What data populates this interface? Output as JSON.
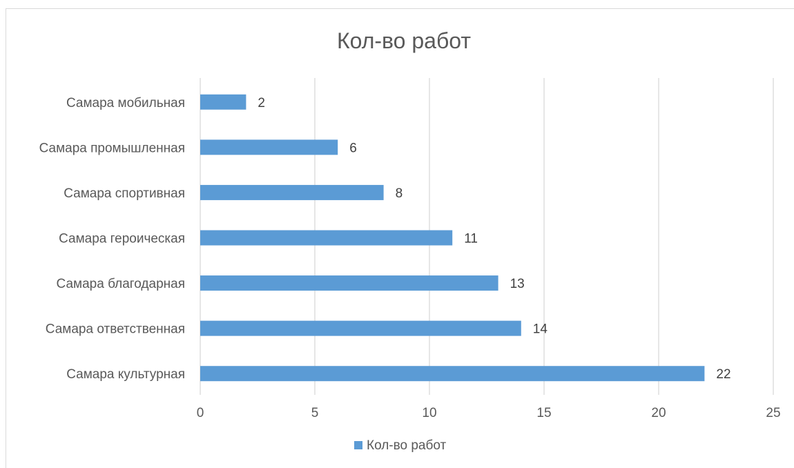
{
  "chart_data": {
    "type": "bar",
    "orientation": "horizontal",
    "title": "Кол-во работ",
    "categories": [
      "Самара мобильная",
      "Самара промышленная",
      "Самара спортивная",
      "Самара героическая",
      "Самара благодарная",
      "Самара ответственная",
      "Самара культурная"
    ],
    "series": [
      {
        "name": "Кол-во работ",
        "values": [
          2,
          6,
          8,
          11,
          13,
          14,
          22
        ],
        "color": "#5b9bd5"
      }
    ],
    "xlim": [
      0,
      25
    ],
    "xticks": [
      "0",
      "5",
      "10",
      "15",
      "20",
      "25"
    ],
    "grid": true,
    "gridColor": "#d9d9d9",
    "legend": "bottom",
    "data_labels": true
  }
}
